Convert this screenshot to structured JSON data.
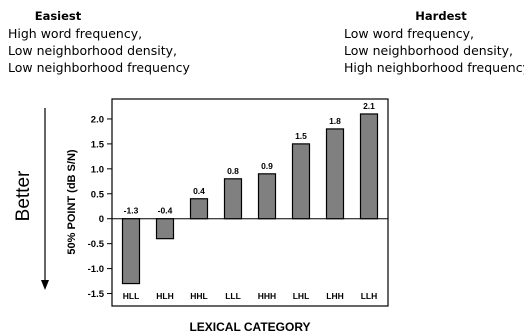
{
  "annotation_left": {
    "heading": "Easiest",
    "lines": [
      "High word frequency,",
      "Low neighborhood density,",
      "Low neighborhood frequency"
    ]
  },
  "annotation_right": {
    "heading": "Hardest",
    "lines": [
      "Low word frequency,",
      "Low neighborhood density,",
      "High neighborhood frequency"
    ]
  },
  "side_label": "Better",
  "chart_data": {
    "type": "bar",
    "categories": [
      "HLL",
      "HLH",
      "HHL",
      "LLL",
      "HHH",
      "LHL",
      "LHH",
      "LLH"
    ],
    "values": [
      -1.3,
      -0.4,
      0.4,
      0.8,
      0.9,
      1.5,
      1.8,
      2.1
    ],
    "data_labels": [
      "-1.3",
      "-0.4",
      "0.4",
      "0.8",
      "0.9",
      "1.5",
      "1.8",
      "2.1"
    ],
    "xlabel": "LEXICAL CATEGORY",
    "ylabel": "50% POINT (dB S/N)",
    "ylim": [
      -1.75,
      2.4
    ],
    "yticks": [
      -1.5,
      -1.0,
      -0.5,
      0,
      0.5,
      1.0,
      1.5,
      2.0
    ],
    "ytick_labels": [
      "-1.5",
      "-1.0",
      "-0.5",
      "0",
      "0.5",
      "1.0",
      "1.5",
      "2.0"
    ],
    "bar_color": "#808080",
    "grid": false
  }
}
